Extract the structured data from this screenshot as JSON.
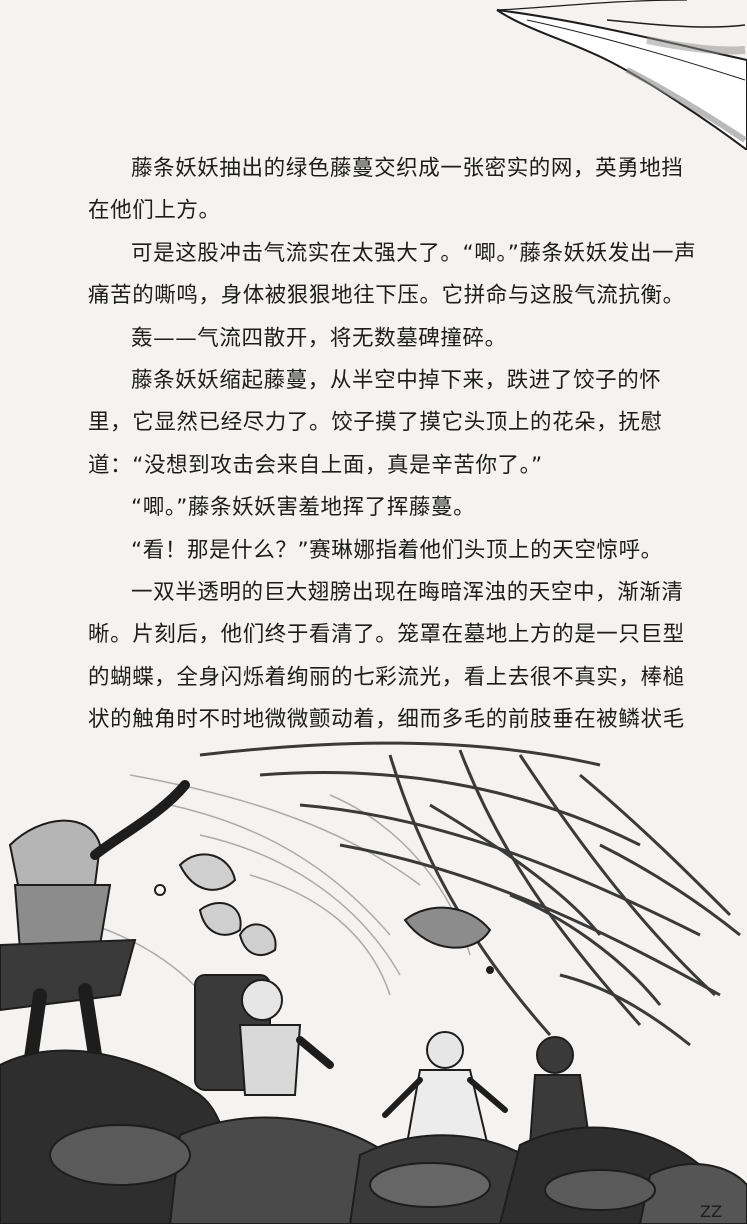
{
  "page": {
    "paragraphs": [
      "藤条妖妖抽出的绿色藤蔓交织成一张密实的网，英勇地挡在他们上方。",
      "可是这股冲击气流实在太强大了。“唧。”藤条妖妖发出一声痛苦的嘶鸣，身体被狠狠地往下压。它拼命与这股气流抗衡。",
      "轰——气流四散开，将无数墓碑撞碎。",
      "藤条妖妖缩起藤蔓，从半空中掉下来，跌进了饺子的怀里，它显然已经尽力了。饺子摸了摸它头顶上的花朵，抚慰道：“没想到攻击会来自上面，真是辛苦你了。”",
      "“唧。”藤条妖妖害羞地挥了挥藤蔓。",
      "“看！那是什么？”赛琳娜指着他们头顶上的天空惊呼。",
      "一双半透明的巨大翅膀出现在晦暗浑浊的天空中，渐渐清晰。片刻后，他们终于看清了。笼罩在墓地上方的是一只巨型的蝴蝶，全身闪烁着绚丽的七彩流光，看上去很不真实，棒槌状的触角时不时地微微颤动着，细而多毛的前肢垂在被鳞状毛"
    ]
  },
  "illustration": {
    "page_corner_mark": "ZZ"
  },
  "colors": {
    "ink": "#1d1d1d",
    "paper": "#f4f3f1",
    "gray_tone": "#8c8c8c",
    "dark_tone": "#3a3a3a"
  }
}
